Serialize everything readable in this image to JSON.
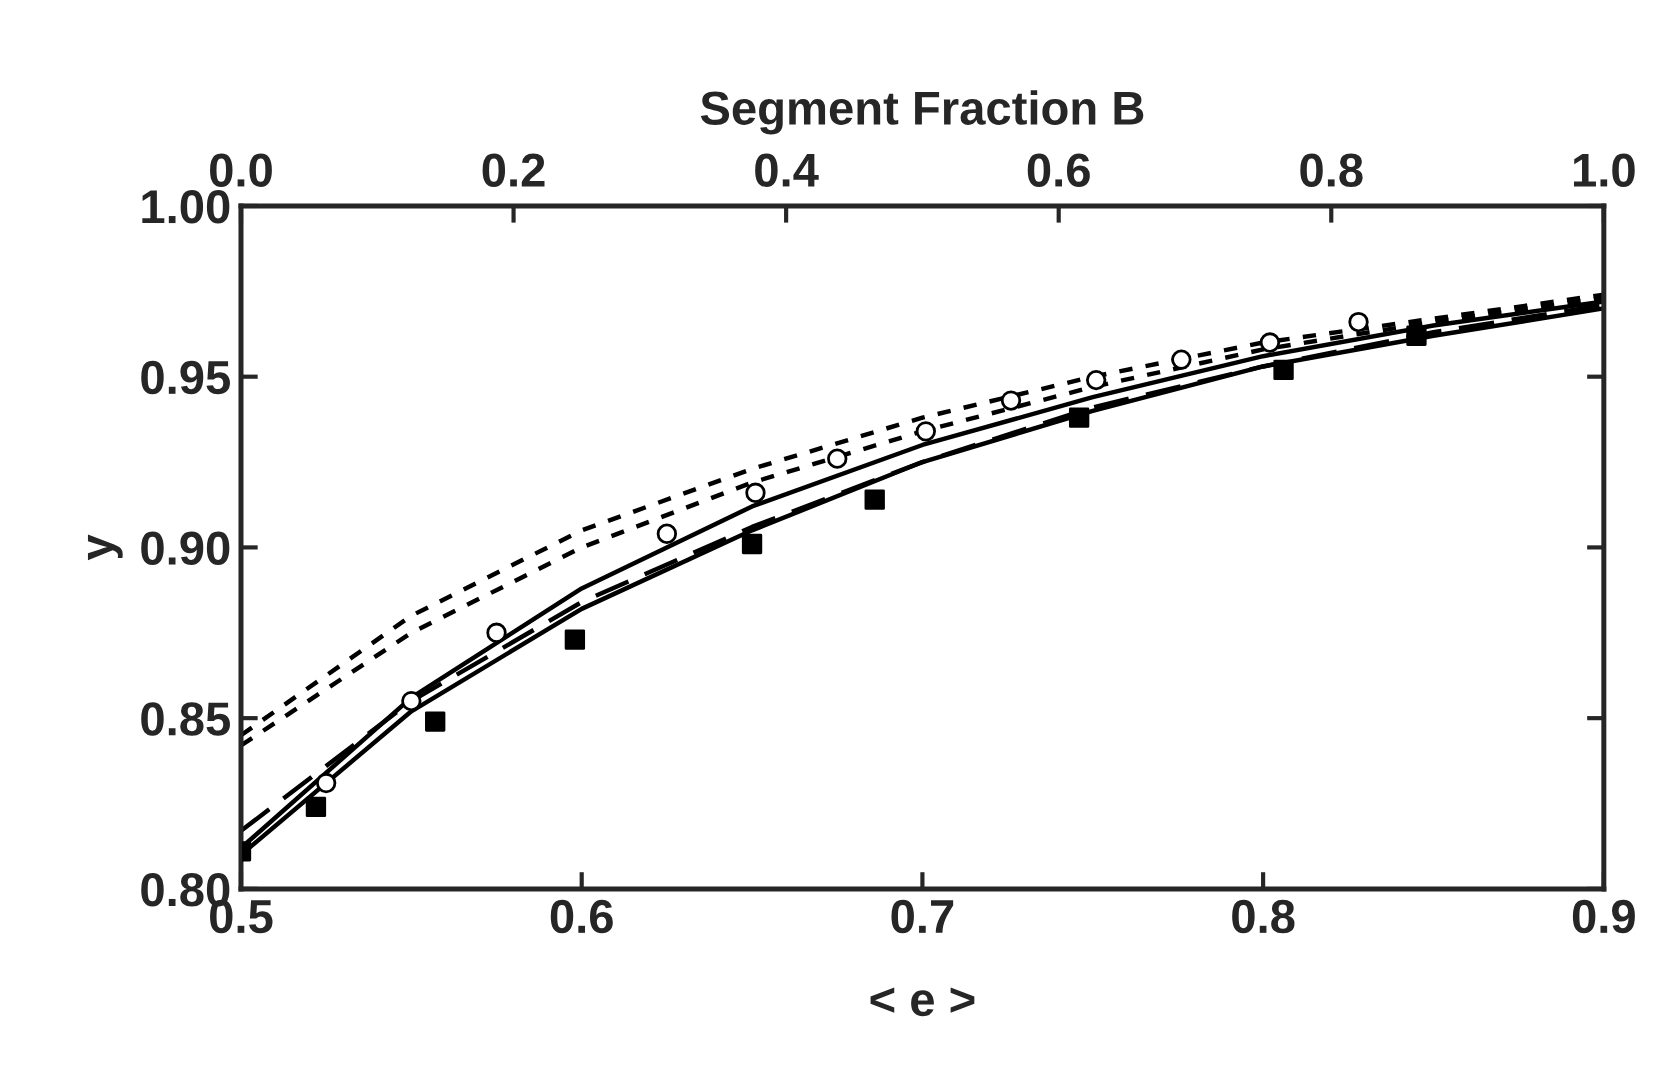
{
  "chart_data": {
    "type": "line",
    "xlabel": "< e >",
    "ylabel": "y",
    "x2label": "Segment Fraction B",
    "xlim": [
      0.5,
      0.9
    ],
    "xticks": [
      0.5,
      0.6,
      0.7,
      0.8,
      0.9
    ],
    "ylim": [
      0.8,
      1.0
    ],
    "yticks": [
      {
        "value": 0.8,
        "label": "0.80"
      },
      {
        "value": 0.85,
        "label": "0.85"
      },
      {
        "value": 0.9,
        "label": "0.90"
      },
      {
        "value": 0.95,
        "label": "0.95"
      },
      {
        "value": 1.0,
        "label": "1.00"
      }
    ],
    "x2lim": [
      0.0,
      1.0
    ],
    "x2ticks": [
      {
        "value": 0,
        "label": "0.0"
      },
      0.2,
      0.4,
      0.6,
      0.8,
      {
        "value": 1,
        "label": "1.0"
      }
    ],
    "grid": false,
    "series": [
      {
        "type": "scatter",
        "marker": "square",
        "color": "#000000",
        "x": [
          0.5,
          0.522,
          0.557,
          0.598,
          0.65,
          0.686,
          0.746,
          0.806,
          0.845
        ],
        "values": [
          0.811,
          0.824,
          0.849,
          0.873,
          0.901,
          0.914,
          0.938,
          0.952,
          0.962
        ]
      },
      {
        "type": "scatter",
        "marker": "circle",
        "color": "#000000",
        "x": [
          0.525,
          0.55,
          0.575,
          0.625,
          0.651,
          0.675,
          0.701,
          0.726,
          0.751,
          0.776,
          0.802,
          0.828
        ],
        "values": [
          0.831,
          0.855,
          0.875,
          0.904,
          0.916,
          0.926,
          0.934,
          0.943,
          0.949,
          0.955,
          0.96,
          0.966
        ]
      },
      {
        "line_style": "solid",
        "color": "#000000",
        "x": [
          0.5,
          0.55,
          0.6,
          0.65,
          0.7,
          0.75,
          0.8,
          0.85,
          0.9
        ],
        "values": [
          0.81,
          0.852,
          0.882,
          0.905,
          0.925,
          0.94,
          0.953,
          0.962,
          0.97
        ]
      },
      {
        "line_style": "solid",
        "color": "#000000",
        "x": [
          0.5,
          0.55,
          0.6,
          0.65,
          0.7,
          0.75,
          0.8,
          0.85,
          0.9
        ],
        "values": [
          0.812,
          0.856,
          0.888,
          0.912,
          0.93,
          0.944,
          0.956,
          0.965,
          0.972
        ]
      },
      {
        "line_style": "dashed",
        "color": "#000000",
        "x": [
          0.5,
          0.55,
          0.6,
          0.65,
          0.7,
          0.75,
          0.8,
          0.85,
          0.9
        ],
        "values": [
          0.817,
          0.855,
          0.884,
          0.906,
          0.925,
          0.941,
          0.953,
          0.963,
          0.971
        ]
      },
      {
        "line_style": "dotted",
        "color": "#000000",
        "x": [
          0.5,
          0.55,
          0.6,
          0.65,
          0.7,
          0.75,
          0.8,
          0.85,
          0.9
        ],
        "values": [
          0.842,
          0.875,
          0.9,
          0.919,
          0.934,
          0.947,
          0.958,
          0.966,
          0.973
        ]
      },
      {
        "line_style": "dotted",
        "color": "#000000",
        "x": [
          0.5,
          0.55,
          0.6,
          0.65,
          0.7,
          0.75,
          0.8,
          0.85,
          0.9
        ],
        "values": [
          0.845,
          0.88,
          0.905,
          0.923,
          0.938,
          0.95,
          0.96,
          0.967,
          0.974
        ]
      }
    ]
  }
}
